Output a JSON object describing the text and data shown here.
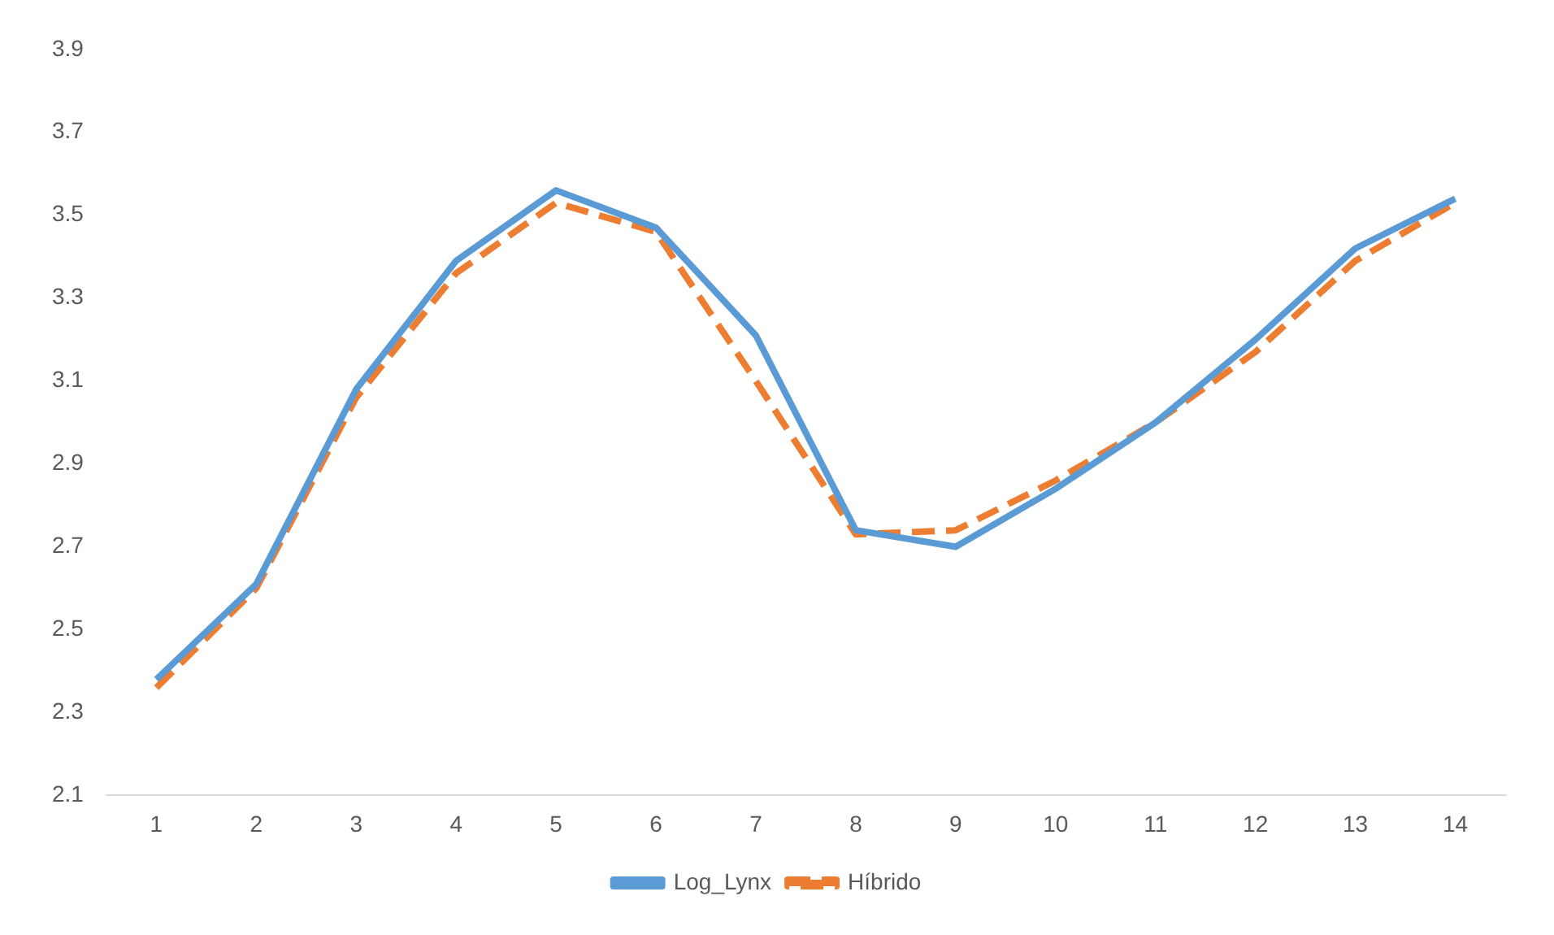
{
  "chart_data": {
    "type": "line",
    "x": [
      1,
      2,
      3,
      4,
      5,
      6,
      7,
      8,
      9,
      10,
      11,
      12,
      13,
      14
    ],
    "xlim": [
      0.5,
      14.5
    ],
    "xticks": [
      1,
      2,
      3,
      4,
      5,
      6,
      7,
      8,
      9,
      10,
      11,
      12,
      13,
      14
    ],
    "series": [
      {
        "name": "Log_Lynx",
        "color": "#5b9bd5",
        "line_style": "solid",
        "values": [
          2.38,
          2.61,
          3.08,
          3.39,
          3.56,
          3.47,
          3.21,
          2.74,
          2.7,
          2.84,
          3.0,
          3.2,
          3.42,
          3.54
        ]
      },
      {
        "name": "Híbrido",
        "color": "#ed7d31",
        "line_style": "dashed",
        "values": [
          2.36,
          2.6,
          3.06,
          3.36,
          3.53,
          3.46,
          3.1,
          2.73,
          2.74,
          2.86,
          3.0,
          3.17,
          3.39,
          3.53
        ]
      }
    ],
    "ylim": [
      2.1,
      3.9
    ],
    "yticks": [
      2.1,
      2.3,
      2.5,
      2.7,
      2.9,
      3.1,
      3.3,
      3.5,
      3.7,
      3.9
    ],
    "grid": false,
    "legend": "bottom",
    "marker": "none"
  }
}
